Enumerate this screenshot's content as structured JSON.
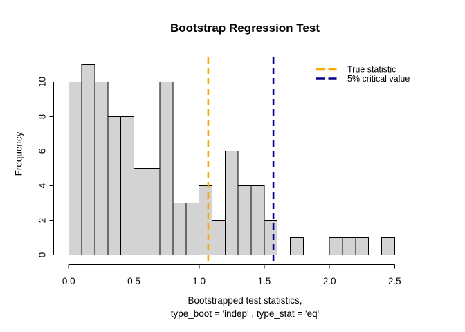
{
  "chart_data": {
    "type": "histogram",
    "title": "Bootstrap Regression Test",
    "ylabel": "Frequency",
    "xlabel_line1": "Bootstrapped test statistics,",
    "xlabel_line2": "type_boot = 'indep' , type_stat = 'eq'",
    "bin_start": 0.0,
    "bin_width": 0.1,
    "counts": [
      10,
      11,
      10,
      8,
      8,
      5,
      5,
      10,
      3,
      3,
      4,
      2,
      6,
      4,
      4,
      2,
      0,
      1,
      0,
      0,
      1,
      1,
      1,
      0,
      1,
      0,
      0,
      0
    ],
    "total_observations": 100,
    "x_ticks": [
      0.0,
      0.5,
      1.0,
      1.5,
      2.0,
      2.5
    ],
    "x_tick_labels": [
      "0.0",
      "0.5",
      "1.0",
      "1.5",
      "2.0",
      "2.5"
    ],
    "y_ticks": [
      0,
      2,
      4,
      6,
      8,
      10
    ],
    "y_tick_labels": [
      "0",
      "2",
      "4",
      "6",
      "8",
      "10"
    ],
    "xlim": [
      0,
      2.8
    ],
    "ylim": [
      0,
      11
    ],
    "grid": false,
    "bar_fill": "#d3d3d3",
    "bar_stroke": "#000000",
    "axis_color": "#000000",
    "annotations": [
      {
        "name": "true-statistic-line",
        "x": 1.07,
        "color": "#ffa500",
        "style": "dashed"
      },
      {
        "name": "critical-value-line",
        "x": 1.57,
        "color": "#00008b",
        "style": "dashed"
      }
    ],
    "legend": {
      "position": "top-right",
      "entries": [
        {
          "label": "True statistic",
          "color": "#ffa500",
          "style": "dashed"
        },
        {
          "label": "5% critical value",
          "color": "#00008b",
          "style": "dashed"
        }
      ]
    }
  }
}
